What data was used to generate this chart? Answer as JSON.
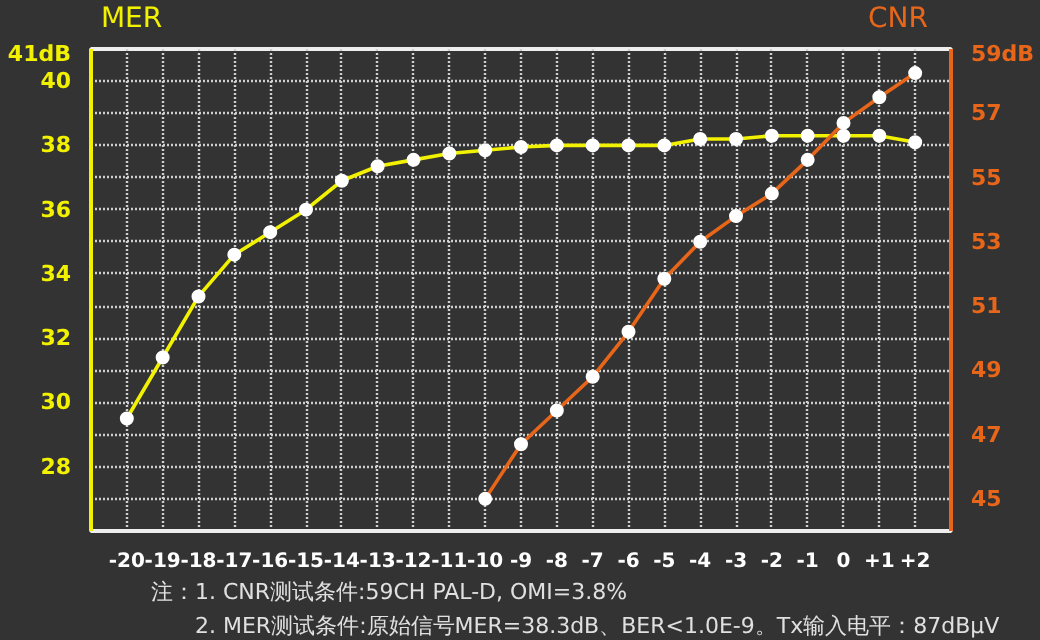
{
  "chart_data": {
    "type": "line",
    "ylabel": "MER",
    "y2label": "CNR",
    "x": [
      -20,
      -19,
      -18,
      -17,
      -16,
      -15,
      -14,
      -13,
      -12,
      -11,
      -10,
      -9,
      -8,
      -7,
      -6,
      -5,
      -4,
      -3,
      -2,
      -1,
      0,
      1,
      2
    ],
    "series": [
      {
        "name": null,
        "color": "#f2f200",
        "values": [
          29.5,
          31.4,
          33.3,
          34.6,
          35.3,
          36.0,
          36.9,
          37.35,
          37.55,
          37.75,
          37.85,
          37.95,
          38.0,
          38.0,
          38.0,
          38.0,
          38.2,
          38.2,
          38.3,
          38.3,
          38.3,
          38.3,
          38.1
        ]
      },
      {
        "name": null,
        "color": "#e8661a",
        "axis": "y2",
        "values": [
          null,
          null,
          null,
          null,
          null,
          null,
          null,
          null,
          null,
          null,
          45.0,
          46.7,
          47.75,
          48.8,
          50.2,
          51.85,
          53.0,
          53.8,
          54.5,
          55.55,
          56.7,
          57.5,
          58.25
        ]
      }
    ],
    "marker": "circle",
    "xlim": [
      -21,
      3
    ],
    "xticks": [
      -20,
      -19,
      -18,
      -17,
      -16,
      -15,
      -14,
      -13,
      -12,
      -11,
      -10,
      -9,
      -8,
      -7,
      -6,
      -5,
      -4,
      -3,
      -2,
      -1,
      0,
      {
        "value": 1,
        "label": "+1"
      },
      {
        "value": 2,
        "label": "+2"
      }
    ],
    "ylim": [
      26,
      41
    ],
    "yticks": [
      {
        "value": 27,
        "label": null
      },
      28,
      {
        "value": 29,
        "label": null
      },
      30,
      {
        "value": 31,
        "label": null
      },
      32,
      {
        "value": 33,
        "label": null
      },
      34,
      {
        "value": 35,
        "label": null
      },
      36,
      {
        "value": 37,
        "label": null
      },
      38,
      {
        "value": 39,
        "label": null
      },
      40,
      {
        "value": 41,
        "label": "41dB"
      }
    ],
    "y2lim": [
      44,
      59
    ],
    "y2ticks": [
      45,
      47,
      49,
      51,
      53,
      55,
      57,
      {
        "value": 59,
        "label": "59dB"
      }
    ],
    "grid": true,
    "annotations": [
      "注：1. CNR测试条件:59CH  PAL-D, OMI=3.8%",
      "2. MER测试条件:原始信号MER=38.3dB、BER<1.0E-9。Tx输入电平：87dBμV"
    ]
  }
}
